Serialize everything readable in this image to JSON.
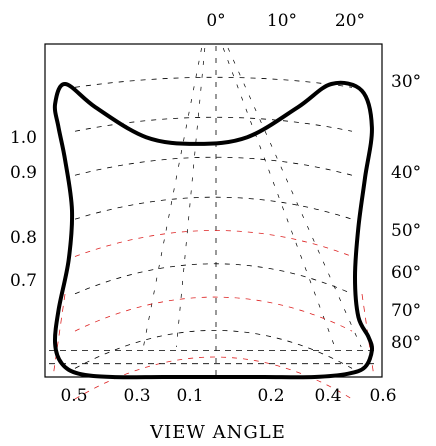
{
  "chart_data": {
    "type": "line",
    "title": "",
    "xlabel": "VIEW ANGLE",
    "ylabel": "",
    "top_tick_labels": [
      "0°",
      "10°",
      "20°"
    ],
    "right_tick_labels": [
      "30°",
      "40°",
      "50°",
      "60°",
      "70°",
      "80°"
    ],
    "left_tick_labels": [
      "1.0",
      "0.9",
      "0.8",
      "0.7"
    ],
    "bottom_tick_labels": [
      "0.5",
      "0.3",
      "0.1",
      "0.2",
      "0.4",
      "0.6"
    ],
    "grid": true,
    "series": [
      {
        "type": "outline",
        "x": [
          0.06,
          0.15,
          0.3,
          0.45,
          0.6,
          0.75,
          0.85,
          0.94,
          0.97,
          0.95,
          0.93,
          0.92,
          0.93,
          0.96,
          0.97,
          0.95,
          0.9,
          0.8,
          0.65,
          0.5,
          0.35,
          0.2,
          0.1,
          0.05,
          0.03,
          0.04,
          0.07,
          0.08,
          0.06,
          0.04,
          0.03,
          0.06
        ],
        "y": [
          0.12,
          0.19,
          0.28,
          0.3,
          0.28,
          0.19,
          0.12,
          0.14,
          0.25,
          0.4,
          0.55,
          0.7,
          0.82,
          0.88,
          0.92,
          0.97,
          0.99,
          1.0,
          1.0,
          1.0,
          1.0,
          1.0,
          0.99,
          0.96,
          0.9,
          0.8,
          0.65,
          0.5,
          0.35,
          0.25,
          0.18,
          0.12
        ]
      }
    ]
  }
}
